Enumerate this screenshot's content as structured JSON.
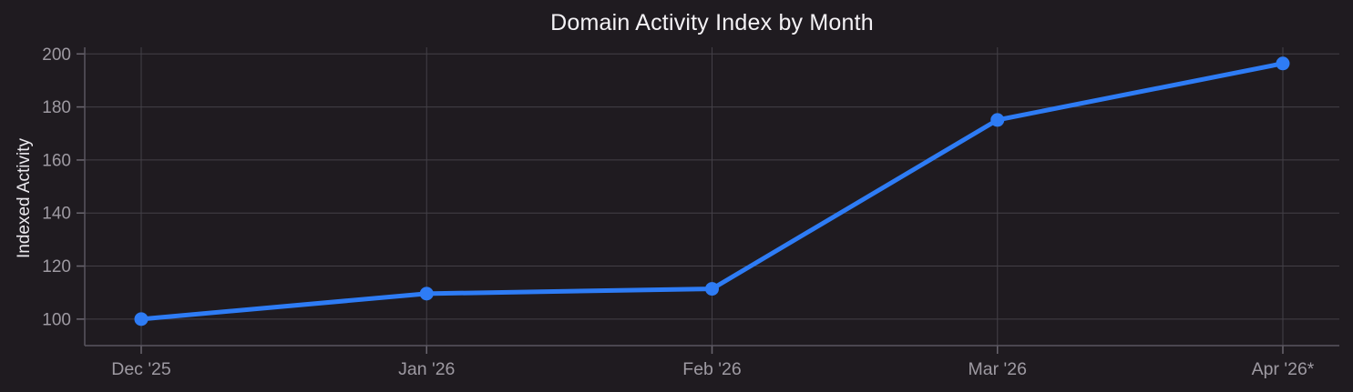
{
  "chart_data": {
    "type": "line",
    "title": "Domain Activity Index by Month",
    "xlabel": "",
    "ylabel": "Indexed Activity",
    "categories": [
      "Dec '25",
      "Jan '26",
      "Feb '26",
      "Mar '26",
      "Apr '26*"
    ],
    "series": [
      {
        "name": "Indexed Activity",
        "values": [
          100,
          109.6,
          111.4,
          175.1,
          196.4
        ]
      }
    ],
    "yticks": [
      100,
      120,
      140,
      160,
      180,
      200
    ],
    "ylim": [
      90,
      202.5
    ],
    "grid": true,
    "legend_position": "none"
  },
  "theme": {
    "background": "#1f1b20",
    "line_color": "#2e7cf5",
    "marker_color": "#2e7cf5",
    "grid_color": "#434047",
    "axis_color": "#5a5660",
    "tick_color": "#6a666f",
    "tick_label_color": "#9e9aa2",
    "title_color": "#f4f2f5",
    "axis_label_color": "#ebe9ee"
  }
}
